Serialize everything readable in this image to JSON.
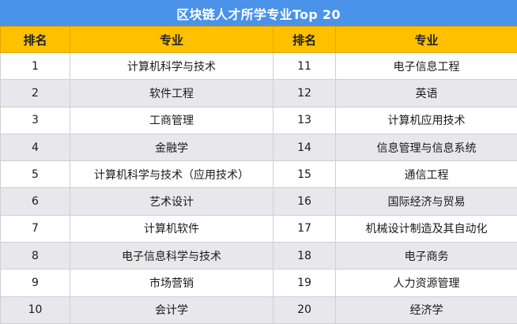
{
  "title": "区块链人才所学专业Top 20",
  "headers": {
    "rank_left": "排名",
    "major_left": "专业",
    "rank_right": "排名",
    "major_right": "专业"
  },
  "rows": [
    {
      "left_rank": "1",
      "left_major": "计算机科学与技术",
      "right_rank": "11",
      "right_major": "电子信息工程"
    },
    {
      "left_rank": "2",
      "left_major": "软件工程",
      "right_rank": "12",
      "right_major": "英语"
    },
    {
      "left_rank": "3",
      "left_major": "工商管理",
      "right_rank": "13",
      "right_major": "计算机应用技术"
    },
    {
      "left_rank": "4",
      "left_major": "金融学",
      "right_rank": "14",
      "right_major": "信息管理与信息系统"
    },
    {
      "left_rank": "5",
      "left_major": "计算机科学与技术（应用技术）",
      "right_rank": "15",
      "right_major": "通信工程"
    },
    {
      "left_rank": "6",
      "left_major": "艺术设计",
      "right_rank": "16",
      "right_major": "国际经济与贸易"
    },
    {
      "left_rank": "7",
      "left_major": "计算机软件",
      "right_rank": "17",
      "right_major": "机械设计制造及其自动化"
    },
    {
      "left_rank": "8",
      "left_major": "电子信息科学与技术",
      "right_rank": "18",
      "right_major": "电子商务"
    },
    {
      "left_rank": "9",
      "left_major": "市场营销",
      "right_rank": "19",
      "right_major": "人力资源管理"
    },
    {
      "left_rank": "10",
      "left_major": "会计学",
      "right_rank": "20",
      "right_major": "经济学"
    }
  ],
  "colors": {
    "title_bg": "#4a92ea",
    "header_bg": "#ffc000",
    "stripe_bg": "#e8e8ec"
  }
}
